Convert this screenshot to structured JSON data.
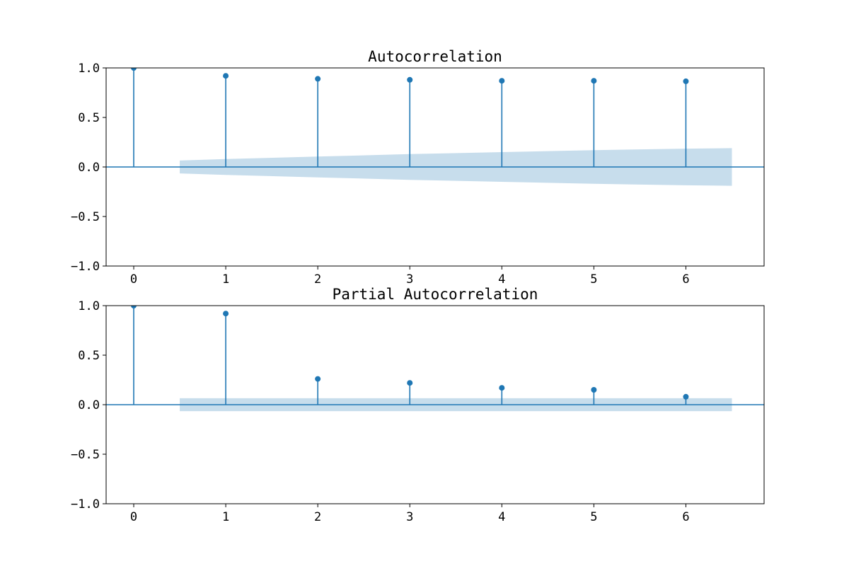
{
  "chart_data": [
    {
      "type": "stem",
      "title": "Autocorrelation",
      "xlabel": "",
      "ylabel": "",
      "xlim": [
        -0.3,
        6.85
      ],
      "ylim": [
        -1.0,
        1.0
      ],
      "x_ticks": [
        0,
        1,
        2,
        3,
        4,
        5,
        6
      ],
      "x_tick_labels": [
        "0",
        "1",
        "2",
        "3",
        "4",
        "5",
        "6"
      ],
      "y_ticks": [
        -1.0,
        -0.5,
        0.0,
        0.5,
        1.0
      ],
      "y_tick_labels": [
        "−1.0",
        "−0.5",
        "0.0",
        "0.5",
        "1.0"
      ],
      "grid": false,
      "color": "#1f77b4",
      "band_color": "#1f77b4",
      "x": [
        0,
        1,
        2,
        3,
        4,
        5,
        6
      ],
      "values": [
        1.0,
        0.92,
        0.89,
        0.88,
        0.87,
        0.87,
        0.865
      ],
      "confidence_band": {
        "x": [
          0.5,
          1,
          2,
          3,
          4,
          5,
          6,
          6.5
        ],
        "upper": [
          0.065,
          0.08,
          0.105,
          0.13,
          0.15,
          0.17,
          0.185,
          0.19
        ],
        "lower": [
          -0.065,
          -0.08,
          -0.105,
          -0.13,
          -0.15,
          -0.17,
          -0.185,
          -0.19
        ]
      }
    },
    {
      "type": "stem",
      "title": "Partial Autocorrelation",
      "xlabel": "",
      "ylabel": "",
      "xlim": [
        -0.3,
        6.85
      ],
      "ylim": [
        -1.0,
        1.0
      ],
      "x_ticks": [
        0,
        1,
        2,
        3,
        4,
        5,
        6
      ],
      "x_tick_labels": [
        "0",
        "1",
        "2",
        "3",
        "4",
        "5",
        "6"
      ],
      "y_ticks": [
        -1.0,
        -0.5,
        0.0,
        0.5,
        1.0
      ],
      "y_tick_labels": [
        "−1.0",
        "−0.5",
        "0.0",
        "0.5",
        "1.0"
      ],
      "grid": false,
      "color": "#1f77b4",
      "band_color": "#1f77b4",
      "x": [
        0,
        1,
        2,
        3,
        4,
        5,
        6
      ],
      "values": [
        1.0,
        0.92,
        0.26,
        0.22,
        0.17,
        0.15,
        0.08
      ],
      "confidence_band": {
        "x": [
          0.5,
          6.5
        ],
        "upper": [
          0.065,
          0.065
        ],
        "lower": [
          -0.065,
          -0.065
        ]
      }
    }
  ]
}
